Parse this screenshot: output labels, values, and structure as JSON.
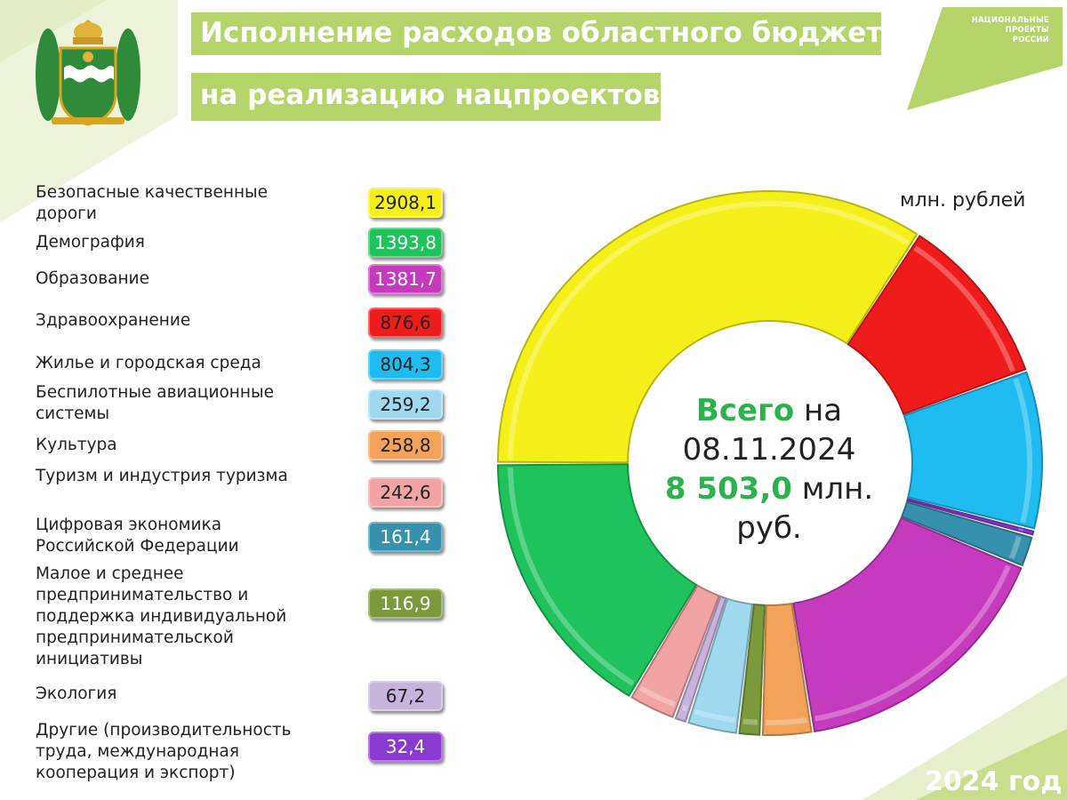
{
  "header": {
    "title_line1": "Исполнение расходов областного бюджета",
    "title_line2": "на реализацию нацпроектов"
  },
  "logo": {
    "line1": "НАЦИОНАЛЬНЫЕ",
    "line2": "ПРОЕКТЫ",
    "line3": "РОССИИ"
  },
  "unit_label": "млн. рублей",
  "center": {
    "word_total": "Всего",
    "word_on": "на",
    "date": "08.11.2024",
    "amount": "8 503,0",
    "unit1": "млн.",
    "unit2": "руб."
  },
  "year_label": "2024 год",
  "colors": {
    "accent_green": "#b5d46a",
    "total_green": "#2bb24c"
  },
  "categories": [
    {
      "label": "Безопасные качественные дороги",
      "value_text": "2908,1",
      "color": "#f5f01a"
    },
    {
      "label": "Демография",
      "value_text": "1393,8",
      "color": "#1ec35b"
    },
    {
      "label": "Образование",
      "value_text": "1381,7",
      "color": "#c63bbe"
    },
    {
      "label": "Здравоохранение",
      "value_text": "876,6",
      "color": "#f01c1c"
    },
    {
      "label": "Жилье и городская среда",
      "value_text": "804,3",
      "color": "#1ebcf0"
    },
    {
      "label": "Беспилотные авиационные системы",
      "value_text": "259,2",
      "color": "#9fd8ef"
    },
    {
      "label": "Культура",
      "value_text": "258,8",
      "color": "#f3a25a"
    },
    {
      "label": "Туризм и индустрия туризма",
      "value_text": "242,6",
      "color": "#f2a3a3"
    },
    {
      "label": "Цифровая экономика Российской Федерации",
      "value_text": "161,4",
      "color": "#3591ad"
    },
    {
      "label": "Малое и среднее предпринимательство и поддержка индивидуальной предпринимательской инициативы",
      "value_text": "116,9",
      "color": "#7a9a3c"
    },
    {
      "label": "Экология",
      "value_text": "67,2",
      "color": "#c7b3dc"
    },
    {
      "label": "Другие (производительность труда, международная кооперация и экспорт)",
      "value_text": "32,4",
      "color": "#8a3ad0"
    }
  ],
  "chart_data": {
    "type": "pie",
    "variant": "donut",
    "unit": "млн. рублей",
    "total": 8503.0,
    "slices": [
      {
        "name": "Безопасные качественные дороги",
        "value": 2908.1,
        "color": "#f5f01a"
      },
      {
        "name": "Здравоохранение",
        "value": 876.6,
        "color": "#f01c1c"
      },
      {
        "name": "Жилье и городская среда",
        "value": 804.3,
        "color": "#1ebcf0"
      },
      {
        "name": "Другие (производительность труда, международная кооперация и экспорт)",
        "value": 32.4,
        "color": "#8a3ad0"
      },
      {
        "name": "Цифровая экономика Российской Федерации",
        "value": 161.4,
        "color": "#3591ad"
      },
      {
        "name": "Образование",
        "value": 1381.7,
        "color": "#c63bbe"
      },
      {
        "name": "Культура",
        "value": 258.8,
        "color": "#f3a25a"
      },
      {
        "name": "Малое и среднее предпринимательство и поддержка индивидуальной предпринимательской инициативы",
        "value": 116.9,
        "color": "#7a9a3c"
      },
      {
        "name": "Беспилотные авиационные системы",
        "value": 259.2,
        "color": "#9fd8ef"
      },
      {
        "name": "Экология",
        "value": 67.2,
        "color": "#c7b3dc"
      },
      {
        "name": "Туризм и индустрия туризма",
        "value": 242.6,
        "color": "#f2a3a3"
      },
      {
        "name": "Демография",
        "value": 1393.8,
        "color": "#1ec35b"
      }
    ]
  }
}
